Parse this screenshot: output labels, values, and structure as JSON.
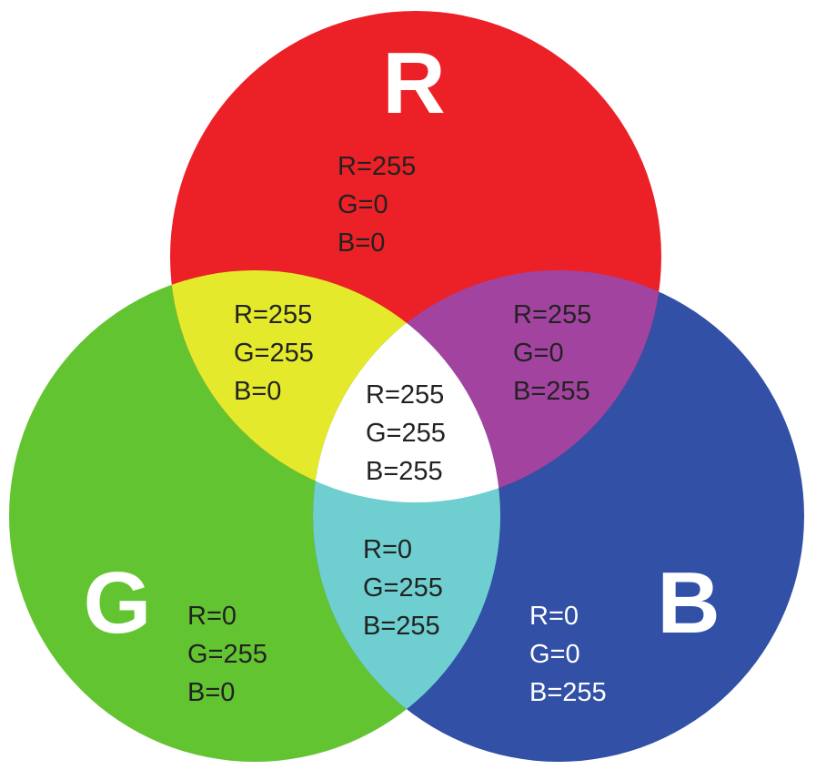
{
  "colors": {
    "red": "#ec2027",
    "green": "#63c432",
    "blue": "#3150a6",
    "yellow": "#e4ea2b",
    "magenta": "#a343a0",
    "cyan": "#6fcfd0",
    "white": "#ffffff"
  },
  "letters": {
    "r": "R",
    "g": "G",
    "b": "B"
  },
  "regions": {
    "red": {
      "line1": "R=255",
      "line2": "G=0",
      "line3": "B=0"
    },
    "yellow": {
      "line1": "R=255",
      "line2": "G=255",
      "line3": "B=0"
    },
    "magenta": {
      "line1": "R=255",
      "line2": "G=0",
      "line3": "B=255"
    },
    "white": {
      "line1": "R=255",
      "line2": "G=255",
      "line3": "B=255"
    },
    "cyan": {
      "line1": "R=0",
      "line2": "G=255",
      "line3": "B=255"
    },
    "green": {
      "line1": "R=0",
      "line2": "G=255",
      "line3": "B=0"
    },
    "blue": {
      "line1": "R=0",
      "line2": "G=0",
      "line3": "B=255"
    }
  }
}
